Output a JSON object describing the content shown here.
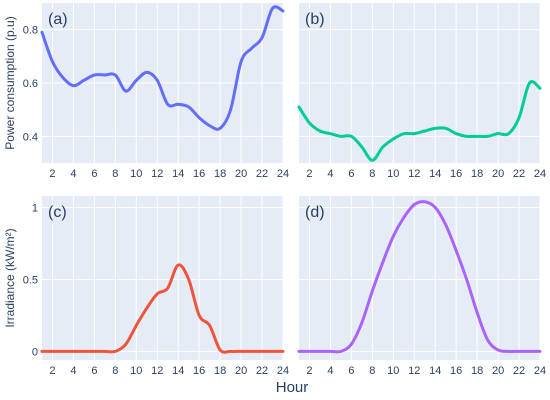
{
  "figure": {
    "xlabel": "Hour",
    "colors": {
      "plot_bg": "#e5ecf6",
      "grid": "#ffffff",
      "text": "#2a3f5f"
    }
  },
  "chart_data": [
    {
      "type": "line",
      "panel": "(a)",
      "ylabel": "Power consumption (p.u)",
      "xlim": [
        1,
        24
      ],
      "ylim": [
        0.3,
        0.9
      ],
      "x_ticks": [
        2,
        4,
        6,
        8,
        10,
        12,
        14,
        16,
        18,
        20,
        22,
        24
      ],
      "y_ticks": [
        0.4,
        0.6,
        0.8
      ],
      "y_tick_labels": [
        "0.4",
        "0.6",
        "0.8"
      ],
      "grid": true,
      "series": [
        {
          "color": "#636efa",
          "x": [
            1,
            2,
            3,
            4,
            5,
            6,
            7,
            8,
            9,
            10,
            11,
            12,
            13,
            14,
            15,
            16,
            17,
            18,
            19,
            20,
            21,
            22,
            23,
            24
          ],
          "values": [
            0.79,
            0.68,
            0.62,
            0.59,
            0.61,
            0.63,
            0.63,
            0.63,
            0.57,
            0.61,
            0.64,
            0.61,
            0.52,
            0.52,
            0.51,
            0.47,
            0.44,
            0.43,
            0.5,
            0.68,
            0.73,
            0.77,
            0.88,
            0.87
          ]
        }
      ]
    },
    {
      "type": "line",
      "panel": "(b)",
      "ylabel": "",
      "xlim": [
        1,
        24
      ],
      "ylim": [
        0.3,
        0.9
      ],
      "x_ticks": [
        2,
        4,
        6,
        8,
        10,
        12,
        14,
        16,
        18,
        20,
        22,
        24
      ],
      "y_ticks": [
        0.4,
        0.6,
        0.8
      ],
      "y_tick_labels": [
        "",
        "",
        ""
      ],
      "grid": true,
      "series": [
        {
          "color": "#00cc96",
          "x": [
            1,
            2,
            3,
            4,
            5,
            6,
            7,
            8,
            9,
            10,
            11,
            12,
            13,
            14,
            15,
            16,
            17,
            18,
            19,
            20,
            21,
            22,
            23,
            24
          ],
          "values": [
            0.51,
            0.45,
            0.42,
            0.41,
            0.4,
            0.4,
            0.36,
            0.31,
            0.36,
            0.39,
            0.41,
            0.41,
            0.42,
            0.43,
            0.43,
            0.41,
            0.4,
            0.4,
            0.4,
            0.41,
            0.41,
            0.47,
            0.6,
            0.58
          ]
        }
      ]
    },
    {
      "type": "line",
      "panel": "(c)",
      "ylabel": "Irradiance (kW/m²)",
      "xlim": [
        1,
        24
      ],
      "ylim": [
        -0.06,
        1.08
      ],
      "x_ticks": [
        2,
        4,
        6,
        8,
        10,
        12,
        14,
        16,
        18,
        20,
        22,
        24
      ],
      "y_ticks": [
        0,
        0.5,
        1
      ],
      "y_tick_labels": [
        "0",
        "0.5",
        "1"
      ],
      "grid": true,
      "series": [
        {
          "color": "#ef553b",
          "x": [
            1,
            2,
            3,
            4,
            5,
            6,
            7,
            8,
            9,
            10,
            11,
            12,
            13,
            14,
            15,
            16,
            17,
            18,
            19,
            20,
            21,
            22,
            23,
            24
          ],
          "values": [
            0,
            0,
            0,
            0,
            0,
            0,
            0,
            0,
            0.05,
            0.18,
            0.3,
            0.4,
            0.44,
            0.6,
            0.5,
            0.25,
            0.18,
            0.01,
            0,
            0,
            0,
            0,
            0,
            0
          ]
        }
      ]
    },
    {
      "type": "line",
      "panel": "(d)",
      "ylabel": "",
      "xlim": [
        1,
        24
      ],
      "ylim": [
        -0.06,
        1.08
      ],
      "x_ticks": [
        2,
        4,
        6,
        8,
        10,
        12,
        14,
        16,
        18,
        20,
        22,
        24
      ],
      "y_ticks": [
        0,
        0.5,
        1
      ],
      "y_tick_labels": [
        "",
        "",
        ""
      ],
      "grid": true,
      "series": [
        {
          "color": "#ab63fa",
          "x": [
            1,
            2,
            3,
            4,
            5,
            6,
            7,
            8,
            9,
            10,
            11,
            12,
            13,
            14,
            15,
            16,
            17,
            18,
            19,
            20,
            21,
            22,
            23,
            24
          ],
          "values": [
            0,
            0,
            0,
            0,
            0,
            0.05,
            0.2,
            0.42,
            0.62,
            0.8,
            0.93,
            1.02,
            1.04,
            1.0,
            0.88,
            0.7,
            0.5,
            0.27,
            0.08,
            0.01,
            0,
            0,
            0,
            0
          ]
        }
      ]
    }
  ]
}
